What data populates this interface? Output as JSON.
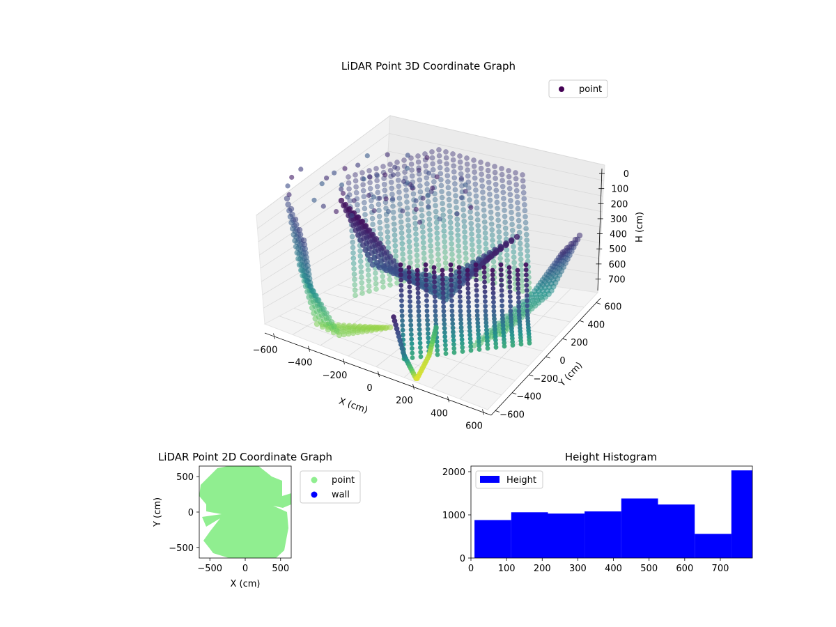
{
  "chart_data": [
    {
      "type": "scatter",
      "projection": "3d",
      "title": "LiDAR Point 3D Coordinate Graph",
      "xlabel": "X (cm)",
      "ylabel": "Y (cm)",
      "zlabel": "H (cm)",
      "xticks": [
        -600,
        -400,
        -200,
        0,
        200,
        400,
        600
      ],
      "yticks": [
        -600,
        -400,
        -200,
        0,
        200,
        400,
        600
      ],
      "zticks": [
        0,
        100,
        200,
        300,
        400,
        500,
        600,
        700
      ],
      "xlim": [
        -650,
        650
      ],
      "ylim": [
        -650,
        650
      ],
      "zlim": [
        0,
        790
      ],
      "z_inverted": true,
      "colormap": "viridis",
      "grid": true,
      "legend": {
        "position": "top-right",
        "entries": [
          {
            "label": "point",
            "color": "#440154"
          }
        ]
      }
    },
    {
      "type": "scatter",
      "title": "LiDAR Point 2D Coordinate Graph",
      "xlabel": "X (cm)",
      "ylabel": "Y (cm)",
      "xticks": [
        -500,
        0,
        500
      ],
      "yticks": [
        -500,
        0,
        500
      ],
      "xlim": [
        -650,
        650
      ],
      "ylim": [
        -650,
        650
      ],
      "legend": {
        "position": "outside-right",
        "entries": [
          {
            "label": "point",
            "color": "#90ee90"
          },
          {
            "label": "wall",
            "color": "#0000ff"
          }
        ]
      },
      "series": [
        {
          "name": "point",
          "color": "#90ee90"
        },
        {
          "name": "wall",
          "color": "#0000ff"
        }
      ]
    },
    {
      "type": "bar",
      "subtype": "histogram",
      "title": "Height Histogram",
      "bin_edges": [
        10,
        113,
        216,
        319,
        422,
        525,
        628,
        731,
        790
      ],
      "values": [
        880,
        1060,
        1030,
        1080,
        1380,
        1240,
        560,
        2030
      ],
      "color": "#0000ff",
      "xticks": [
        0,
        100,
        200,
        300,
        400,
        500,
        600,
        700
      ],
      "yticks": [
        0,
        1000,
        2000
      ],
      "xlim": [
        0,
        790
      ],
      "ylim": [
        0,
        2130
      ],
      "legend": {
        "position": "top-left",
        "entries": [
          {
            "label": "Height",
            "color": "#0000ff"
          }
        ]
      }
    }
  ]
}
